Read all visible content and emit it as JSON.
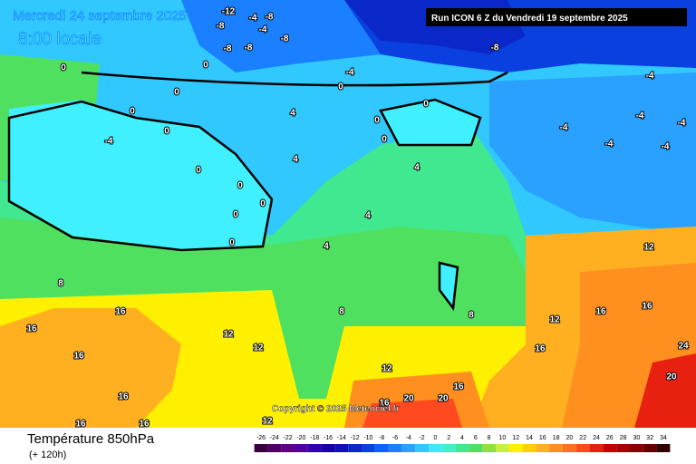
{
  "header": {
    "date": "Mercredi 24 septembre 2025",
    "time": "8:00 locale",
    "run": "Run ICON 6 Z du Vendredi 19 septembre 2025"
  },
  "map": {
    "labels": [
      -12,
      -4,
      -8,
      -8,
      -4,
      -8,
      -8,
      -8,
      -8,
      -4,
      -4,
      0,
      0,
      0,
      0,
      0,
      -4,
      0,
      0,
      0,
      0,
      0,
      0,
      0,
      0,
      0,
      4,
      4,
      4,
      4,
      4,
      8,
      8,
      8,
      12,
      12,
      12,
      12,
      12,
      12,
      16,
      16,
      16,
      16,
      16,
      16,
      16,
      16,
      16,
      16,
      16,
      20,
      20,
      20,
      24,
      -4,
      -4,
      -4,
      -4,
      -4
    ]
  },
  "copyright": "Copyright © 2025 Meteociel.fr",
  "footer": {
    "variable": "Température 850hPa",
    "lead": "(+ 120h)"
  },
  "scale": {
    "values": [
      -26,
      -24,
      -22,
      -20,
      -18,
      -16,
      -14,
      -12,
      -10,
      -8,
      -6,
      -4,
      -2,
      0,
      2,
      4,
      6,
      8,
      10,
      12,
      14,
      16,
      18,
      20,
      22,
      24,
      26,
      28,
      30,
      32,
      34
    ],
    "colors": [
      "#3a0040",
      "#500060",
      "#600080",
      "#5000a0",
      "#3000b0",
      "#1800a8",
      "#1010b8",
      "#0a28c8",
      "#0a40e0",
      "#1060ff",
      "#1a80ff",
      "#2aa0ff",
      "#30c8ff",
      "#40e8ff",
      "#40f0c8",
      "#40e890",
      "#50e060",
      "#90e040",
      "#c8f040",
      "#fff000",
      "#ffd000",
      "#ffb020",
      "#ff9020",
      "#ff7020",
      "#ff4a20",
      "#e82010",
      "#c80000",
      "#a80000",
      "#880000",
      "#600000",
      "#300000"
    ]
  }
}
